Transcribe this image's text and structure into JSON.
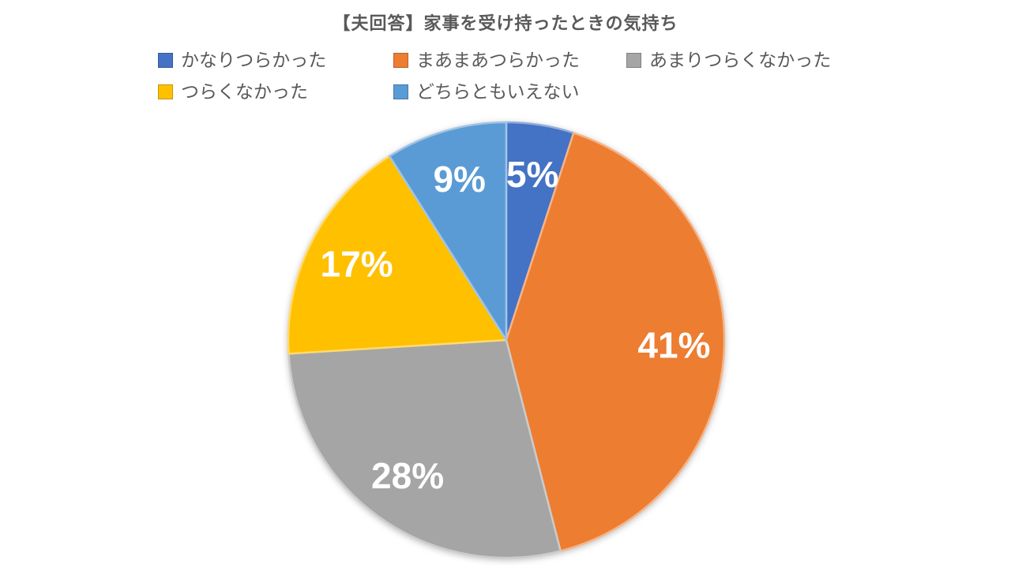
{
  "title": "【夫回答】家事を受け持ったときの気持ち",
  "legend": {
    "position": "top",
    "items": [
      {
        "label": "かなりつらかった",
        "color": "#4472C4"
      },
      {
        "label": "まあまあつらかった",
        "color": "#ED7D31"
      },
      {
        "label": "あまりつらくなかった",
        "color": "#A5A5A5"
      },
      {
        "label": "つらくなかった",
        "color": "#FFC000"
      },
      {
        "label": "どちらともいえない",
        "color": "#5B9BD5"
      }
    ]
  },
  "chart_data": {
    "type": "pie",
    "title": "【夫回答】家事を受け持ったときの気持ち",
    "categories": [
      "かなりつらかった",
      "まあまあつらかった",
      "あまりつらくなかった",
      "つらくなかった",
      "どちらともいえない"
    ],
    "values": [
      5,
      41,
      28,
      17,
      9
    ],
    "data_labels": [
      "5%",
      "41%",
      "28%",
      "17%",
      "9%"
    ],
    "colors": [
      "#4472C4",
      "#ED7D31",
      "#A5A5A5",
      "#FFC000",
      "#5B9BD5"
    ],
    "label_color": "#FFFFFF",
    "title_color": "#595959",
    "legend_text_color": "#595959",
    "background": "#FFFFFF",
    "start_angle_deg": 0,
    "direction": "clockwise",
    "legend_position": "top",
    "grid": false
  }
}
